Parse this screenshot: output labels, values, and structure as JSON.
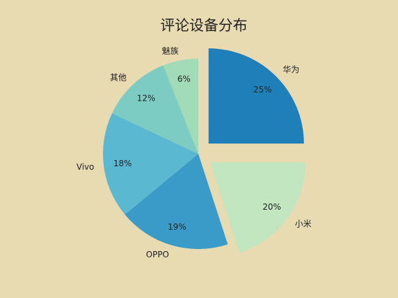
{
  "chart_data": {
    "type": "pie",
    "title": "评论设备分布",
    "labels": [
      "华为",
      "小米",
      "OPPO",
      "Vivo",
      "其他",
      "魅族"
    ],
    "values": [
      25,
      20,
      19,
      18,
      12,
      6
    ],
    "value_labels": [
      "25%",
      "20%",
      "19%",
      "18%",
      "12%",
      "6%"
    ],
    "colors": [
      "#1f7fb8",
      "#c1e6c0",
      "#3a9bc8",
      "#5ab9d1",
      "#7dccc4",
      "#a1dbb8"
    ],
    "exploded": [
      true,
      true,
      false,
      false,
      false,
      false
    ],
    "start_angle_deg": 90,
    "direction": "clockwise",
    "legend": "none",
    "background": "#e8dab1"
  }
}
